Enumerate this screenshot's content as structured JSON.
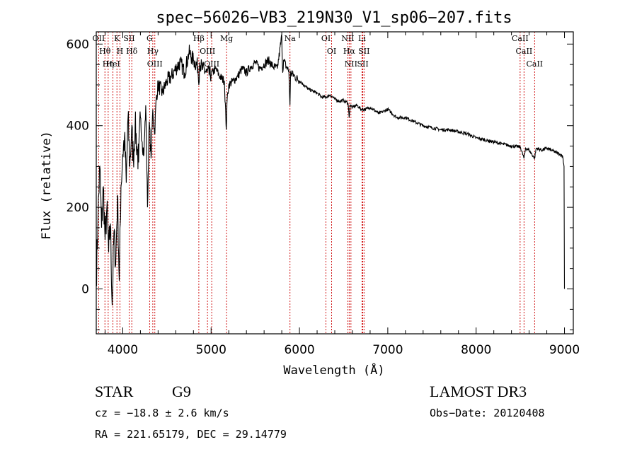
{
  "chart_data": {
    "type": "line",
    "title": "spec−56026−VB3_219N30_V1_sp06−207.fits",
    "xlabel": "Wavelength (Å)",
    "ylabel": "Flux (relative)",
    "xlim": [
      3700,
      9100
    ],
    "ylim": [
      -110,
      630
    ],
    "xticks": [
      4000,
      5000,
      6000,
      7000,
      8000,
      9000
    ],
    "yticks": [
      0,
      200,
      400,
      600
    ],
    "grid": false,
    "series": [
      {
        "name": "flux",
        "x": [
          3700,
          3720,
          3740,
          3760,
          3780,
          3800,
          3820,
          3840,
          3860,
          3880,
          3900,
          3920,
          3940,
          3960,
          3980,
          4000,
          4020,
          4040,
          4060,
          4080,
          4100,
          4120,
          4140,
          4160,
          4180,
          4200,
          4220,
          4240,
          4260,
          4280,
          4300,
          4320,
          4340,
          4360,
          4380,
          4400,
          4450,
          4500,
          4550,
          4600,
          4650,
          4700,
          4750,
          4800,
          4850,
          4861,
          4870,
          4900,
          4950,
          5000,
          5050,
          5100,
          5150,
          5172,
          5183,
          5200,
          5250,
          5300,
          5350,
          5400,
          5450,
          5500,
          5550,
          5600,
          5650,
          5700,
          5750,
          5800,
          5810,
          5820,
          5850,
          5880,
          5893,
          5900,
          5950,
          6000,
          6050,
          6100,
          6150,
          6200,
          6250,
          6300,
          6350,
          6400,
          6450,
          6500,
          6550,
          6563,
          6575,
          6600,
          6650,
          6700,
          6750,
          6800,
          6900,
          7000,
          7100,
          7200,
          7300,
          7400,
          7500,
          7600,
          7700,
          7800,
          7900,
          8000,
          8100,
          8200,
          8300,
          8400,
          8500,
          8542,
          8560,
          8600,
          8662,
          8680,
          8750,
          8800,
          8850,
          8900,
          8950,
          8980,
          8995,
          9000
        ],
        "y": [
          20,
          180,
          300,
          150,
          250,
          120,
          200,
          90,
          160,
          -40,
          140,
          60,
          230,
          20,
          250,
          330,
          370,
          260,
          420,
          300,
          390,
          320,
          400,
          350,
          310,
          420,
          360,
          330,
          450,
          200,
          410,
          320,
          440,
          380,
          470,
          500,
          480,
          510,
          520,
          540,
          555,
          530,
          580,
          560,
          545,
          500,
          555,
          540,
          530,
          525,
          540,
          520,
          510,
          390,
          470,
          500,
          510,
          520,
          540,
          530,
          545,
          555,
          540,
          550,
          560,
          545,
          540,
          620,
          530,
          560,
          545,
          535,
          450,
          530,
          520,
          510,
          500,
          490,
          485,
          480,
          470,
          470,
          475,
          465,
          460,
          462,
          455,
          420,
          450,
          445,
          450,
          440,
          440,
          445,
          430,
          440,
          420,
          420,
          410,
          400,
          395,
          390,
          390,
          385,
          380,
          370,
          365,
          360,
          355,
          350,
          348,
          320,
          345,
          340,
          320,
          345,
          340,
          345,
          340,
          335,
          330,
          325,
          300,
          0
        ]
      }
    ],
    "line_markers": [
      {
        "name": "O II",
        "wavelength": 3727,
        "label": "OII"
      },
      {
        "name": "H theta",
        "wavelength": 3798,
        "label": "Hθ"
      },
      {
        "name": "H eta",
        "wavelength": 3835,
        "label": "Hη"
      },
      {
        "name": "He I",
        "wavelength": 3889,
        "label": "HeI"
      },
      {
        "name": "K",
        "wavelength": 3934,
        "label": "K"
      },
      {
        "name": "H",
        "wavelength": 3968,
        "label": "H"
      },
      {
        "name": "H delta",
        "wavelength": 4102,
        "label": "Hδ"
      },
      {
        "name": "S II",
        "wavelength": 4072,
        "label": "SII"
      },
      {
        "name": "G",
        "wavelength": 4304,
        "label": "G"
      },
      {
        "name": "H gamma",
        "wavelength": 4340,
        "label": "Hγ"
      },
      {
        "name": "O III",
        "wavelength": 4363,
        "label": "OIII"
      },
      {
        "name": "H beta",
        "wavelength": 4861,
        "label": "Hβ"
      },
      {
        "name": "O III",
        "wavelength": 4959,
        "label": "OIII"
      },
      {
        "name": "O III",
        "wavelength": 5007,
        "label": "OIII"
      },
      {
        "name": "Mg",
        "wavelength": 5175,
        "label": "Mg"
      },
      {
        "name": "Na",
        "wavelength": 5893,
        "label": "Na"
      },
      {
        "name": "O I",
        "wavelength": 6300,
        "label": "OI"
      },
      {
        "name": "O I",
        "wavelength": 6364,
        "label": "OI"
      },
      {
        "name": "N II",
        "wavelength": 6548,
        "label": "NII"
      },
      {
        "name": "H alpha",
        "wavelength": 6563,
        "label": "Hα"
      },
      {
        "name": "N II",
        "wavelength": 6583,
        "label": "NII"
      },
      {
        "name": "Li",
        "wavelength": 6708,
        "label": "Li"
      },
      {
        "name": "S II",
        "wavelength": 6717,
        "label": "SII"
      },
      {
        "name": "S II",
        "wavelength": 6731,
        "label": "SII"
      },
      {
        "name": "Ca II",
        "wavelength": 8498,
        "label": "CaII"
      },
      {
        "name": "Ca II",
        "wavelength": 8542,
        "label": "CaII"
      },
      {
        "name": "Ca II",
        "wavelength": 8662,
        "label": "CaII"
      }
    ]
  },
  "info": {
    "class_label": "STAR",
    "subclass": "G9",
    "survey": "LAMOST DR3",
    "cz": "cz = −18.8 ± 2.6 km/s",
    "obs_date": "Obs−Date: 20120408",
    "coords": "RA = 221.65179, DEC =  29.14779"
  },
  "colors": {
    "axis": "#000000",
    "spectrum": "#000000",
    "marker": "#cc0000"
  }
}
